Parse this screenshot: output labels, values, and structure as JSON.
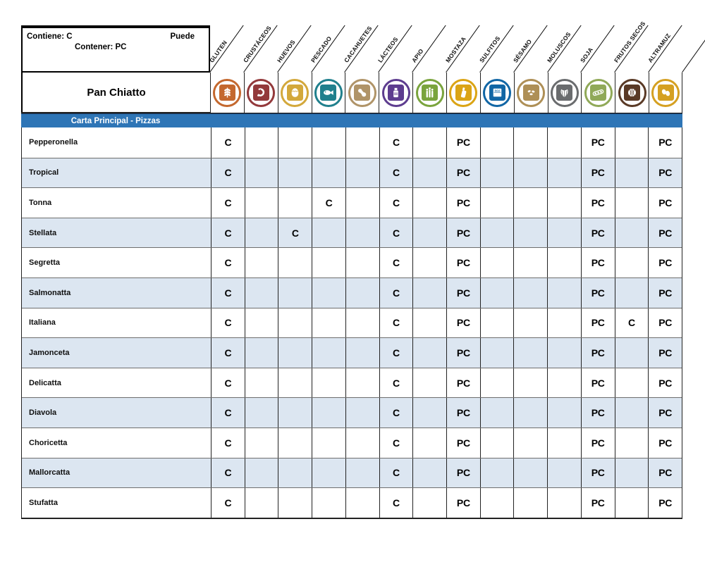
{
  "legend": {
    "contiene": "Contiene: C",
    "puede": "Puede",
    "contener": "Contener: PC"
  },
  "restaurant": "Pan Chiatto",
  "section_title": "Carta Principal - Pizzas",
  "colors": {
    "stripe": "#dce6f1",
    "section_bar": "#2e75b6",
    "grid_line": "#222222"
  },
  "allergens": [
    {
      "label": "GLUTEN",
      "icon": "wheat-icon",
      "color": "#c4682e"
    },
    {
      "label": "CRUSTÁCEOS",
      "icon": "shrimp-icon",
      "color": "#93393b"
    },
    {
      "label": "HUEVOS",
      "icon": "egg-icon",
      "color": "#d3a83b"
    },
    {
      "label": "PESCADO",
      "icon": "fish-icon",
      "color": "#20808d"
    },
    {
      "label": "CACAHUETES",
      "icon": "peanut-icon",
      "color": "#b09468"
    },
    {
      "label": "LÁCTEOS",
      "icon": "milk-bottle-icon",
      "color": "#5d3c8f"
    },
    {
      "label": "APIO",
      "icon": "celery-icon",
      "color": "#7aa43d"
    },
    {
      "label": "MOSTAZA",
      "icon": "mustard-bottle-icon",
      "color": "#dba414"
    },
    {
      "label": "SULFITOS",
      "icon": "so2-box-icon",
      "color": "#1166a5"
    },
    {
      "label": "SÉSAMO",
      "icon": "sesame-seeds-icon",
      "color": "#ae8f56"
    },
    {
      "label": "MOLUSCOS",
      "icon": "shell-icon",
      "color": "#6a6c6e"
    },
    {
      "label": "SOJA",
      "icon": "soy-pod-icon",
      "color": "#90a958"
    },
    {
      "label": "FRUTOS SECOS",
      "icon": "walnut-icon",
      "color": "#5a3a26"
    },
    {
      "label": "ALTRAMUZ",
      "icon": "lupin-beans-icon",
      "color": "#d5a021"
    }
  ],
  "rows": [
    {
      "name": "Pepperonella",
      "marks": [
        "C",
        "",
        "",
        "",
        "",
        "C",
        "",
        "PC",
        "",
        "",
        "",
        "PC",
        "",
        "PC"
      ]
    },
    {
      "name": "Tropical",
      "marks": [
        "C",
        "",
        "",
        "",
        "",
        "C",
        "",
        "PC",
        "",
        "",
        "",
        "PC",
        "",
        "PC"
      ]
    },
    {
      "name": "Tonna",
      "marks": [
        "C",
        "",
        "",
        "C",
        "",
        "C",
        "",
        "PC",
        "",
        "",
        "",
        "PC",
        "",
        "PC"
      ]
    },
    {
      "name": "Stellata",
      "marks": [
        "C",
        "",
        "C",
        "",
        "",
        "C",
        "",
        "PC",
        "",
        "",
        "",
        "PC",
        "",
        "PC"
      ]
    },
    {
      "name": "Segretta",
      "marks": [
        "C",
        "",
        "",
        "",
        "",
        "C",
        "",
        "PC",
        "",
        "",
        "",
        "PC",
        "",
        "PC"
      ]
    },
    {
      "name": "Salmonatta",
      "marks": [
        "C",
        "",
        "",
        "",
        "",
        "C",
        "",
        "PC",
        "",
        "",
        "",
        "PC",
        "",
        "PC"
      ]
    },
    {
      "name": "Italiana",
      "marks": [
        "C",
        "",
        "",
        "",
        "",
        "C",
        "",
        "PC",
        "",
        "",
        "",
        "PC",
        "C",
        "PC"
      ]
    },
    {
      "name": "Jamonceta",
      "marks": [
        "C",
        "",
        "",
        "",
        "",
        "C",
        "",
        "PC",
        "",
        "",
        "",
        "PC",
        "",
        "PC"
      ]
    },
    {
      "name": "Delicatta",
      "marks": [
        "C",
        "",
        "",
        "",
        "",
        "C",
        "",
        "PC",
        "",
        "",
        "",
        "PC",
        "",
        "PC"
      ]
    },
    {
      "name": "Diavola",
      "marks": [
        "C",
        "",
        "",
        "",
        "",
        "C",
        "",
        "PC",
        "",
        "",
        "",
        "PC",
        "",
        "PC"
      ]
    },
    {
      "name": "Choricetta",
      "marks": [
        "C",
        "",
        "",
        "",
        "",
        "C",
        "",
        "PC",
        "",
        "",
        "",
        "PC",
        "",
        "PC"
      ]
    },
    {
      "name": "Mallorcatta",
      "marks": [
        "C",
        "",
        "",
        "",
        "",
        "C",
        "",
        "PC",
        "",
        "",
        "",
        "PC",
        "",
        "PC"
      ]
    },
    {
      "name": "Stufatta",
      "marks": [
        "C",
        "",
        "",
        "",
        "",
        "C",
        "",
        "PC",
        "",
        "",
        "",
        "PC",
        "",
        "PC"
      ]
    }
  ]
}
